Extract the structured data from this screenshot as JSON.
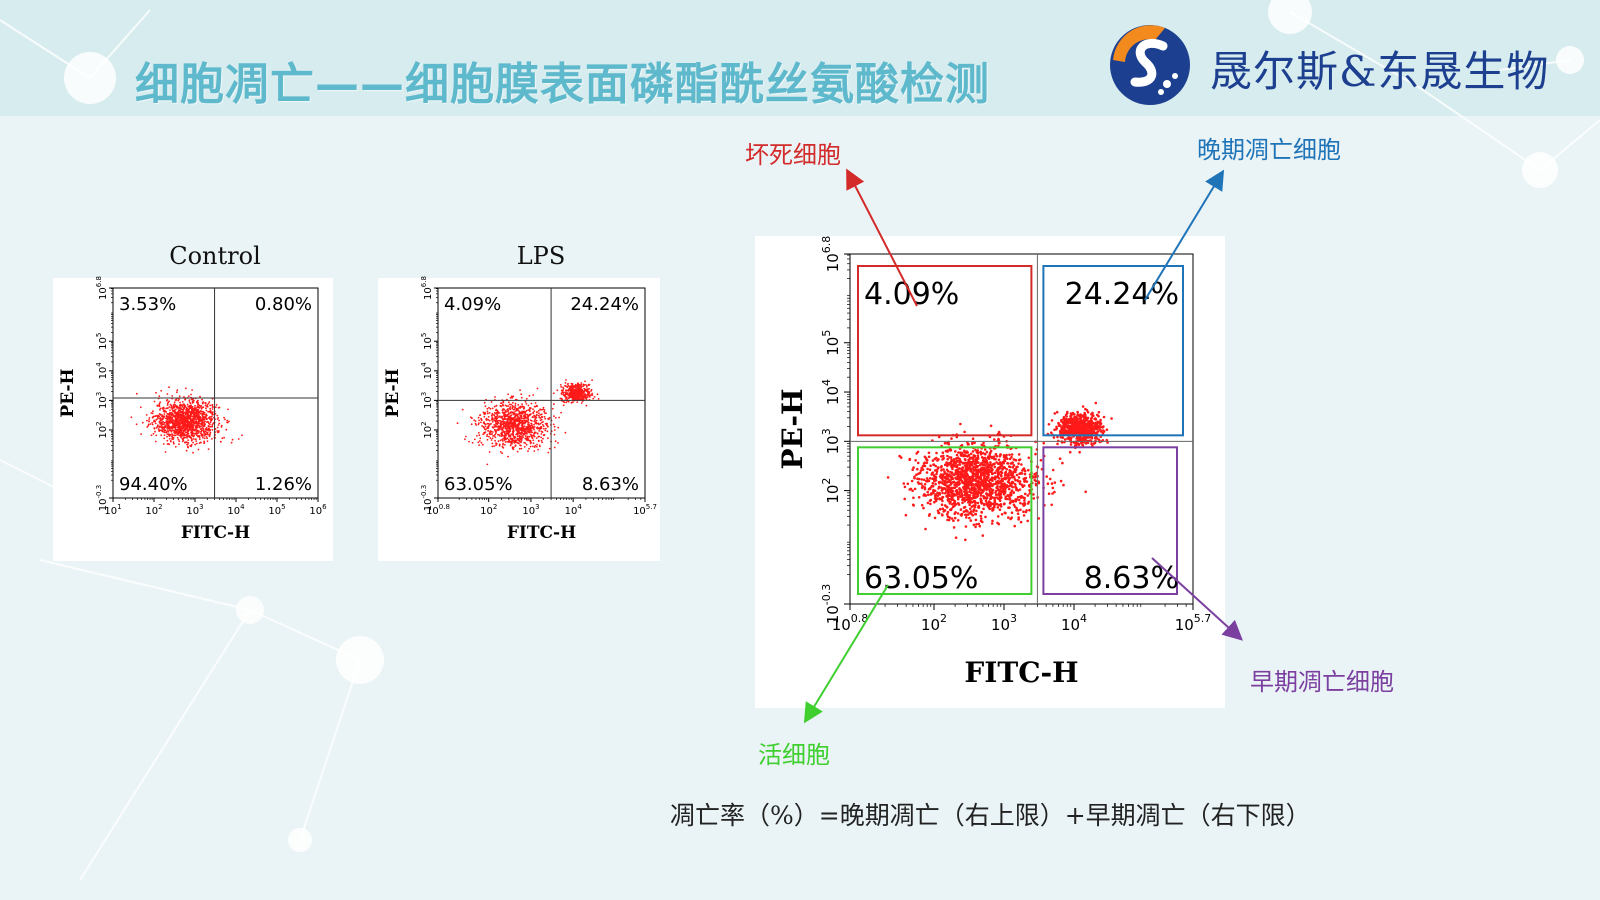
{
  "header": {
    "title": "细胞凋亡——细胞膜表面磷酯酰丝氨酸检测",
    "company": "晟尔斯&东晟生物"
  },
  "annotations": {
    "necrotic": "坏死细胞",
    "late_apoptotic": "晚期凋亡细胞",
    "early_apoptotic": "早期凋亡细胞",
    "live": "活细胞"
  },
  "formula": "凋亡率（%）=晚期凋亡（右上限）+早期凋亡（右下限）",
  "colors": {
    "necrotic": "#d32a2a",
    "late_apoptotic": "#1f74b8",
    "early_apoptotic": "#7b3fa0",
    "live": "#3fcf2f",
    "dots": "#ff1a1a"
  },
  "chart_data": [
    {
      "type": "scatter",
      "title": "Control",
      "xlabel": "FITC-H",
      "ylabel": "PE-H",
      "x_scale": "log",
      "y_scale": "log",
      "xlim": [
        10,
        1000000
      ],
      "ylim_exp": [
        -0.3,
        6.8
      ],
      "x_ticks": [
        {
          "b": "10",
          "e": "1"
        },
        {
          "b": "10",
          "e": "2"
        },
        {
          "b": "10",
          "e": "3"
        },
        {
          "b": "10",
          "e": "4"
        },
        {
          "b": "10",
          "e": "5"
        },
        {
          "b": "10",
          "e": "6"
        }
      ],
      "y_ticks": [
        {
          "b": "10",
          "e": "-0.3"
        },
        {
          "b": "10",
          "e": "2"
        },
        {
          "b": "10",
          "e": "3"
        },
        {
          "b": "10",
          "e": "4"
        },
        {
          "b": "10",
          "e": "5"
        },
        {
          "b": "10",
          "e": "6.8"
        }
      ],
      "quadrants": {
        "upper_left": "3.53%",
        "upper_right": "0.80%",
        "lower_left": "94.40%",
        "lower_right": "1.26%"
      },
      "gate": {
        "x": 3000,
        "y": 1200
      },
      "clusters": [
        {
          "cx": 600,
          "cy": 200,
          "sx": 0.38,
          "sy": 0.35,
          "n": 1400
        }
      ]
    },
    {
      "type": "scatter",
      "title": "LPS",
      "xlabel": "FITC-H",
      "ylabel": "PE-H",
      "x_scale": "log",
      "y_scale": "log",
      "xlim_exp": [
        0.8,
        5.7
      ],
      "ylim_exp": [
        -0.3,
        6.8
      ],
      "x_ticks": [
        {
          "b": "10",
          "e": "0.8"
        },
        {
          "b": "10",
          "e": "2"
        },
        {
          "b": "10",
          "e": "3"
        },
        {
          "b": "10",
          "e": "4"
        },
        {
          "b": "10",
          "e": "5.7"
        }
      ],
      "y_ticks": [
        {
          "b": "10",
          "e": "-0.3"
        },
        {
          "b": "10",
          "e": "2"
        },
        {
          "b": "10",
          "e": "3"
        },
        {
          "b": "10",
          "e": "4"
        },
        {
          "b": "10",
          "e": "5"
        },
        {
          "b": "10",
          "e": "6.8"
        }
      ],
      "quadrants": {
        "upper_left": "4.09%",
        "upper_right": "24.24%",
        "lower_left": "63.05%",
        "lower_right": "8.63%"
      },
      "gate": {
        "x": 3000,
        "y": 1000
      },
      "clusters": [
        {
          "cx": 400,
          "cy": 150,
          "sx": 0.4,
          "sy": 0.38,
          "n": 1100
        },
        {
          "cx": 12000,
          "cy": 1800,
          "sx": 0.16,
          "sy": 0.15,
          "n": 500
        }
      ]
    },
    {
      "type": "scatter",
      "title": "",
      "xlabel": "FITC-H",
      "ylabel": "PE-H",
      "x_scale": "log",
      "y_scale": "log",
      "xlim_exp": [
        0.8,
        5.7
      ],
      "ylim_exp": [
        -0.3,
        6.8
      ],
      "x_ticks": [
        {
          "b": "10",
          "e": "0.8"
        },
        {
          "b": "10",
          "e": "2"
        },
        {
          "b": "10",
          "e": "3"
        },
        {
          "b": "10",
          "e": "4"
        },
        {
          "b": "10",
          "e": "5.7"
        }
      ],
      "y_ticks": [
        {
          "b": "10",
          "e": "-0.3"
        },
        {
          "b": "10",
          "e": "2"
        },
        {
          "b": "10",
          "e": "3"
        },
        {
          "b": "10",
          "e": "4"
        },
        {
          "b": "10",
          "e": "5"
        },
        {
          "b": "10",
          "e": "6.8"
        }
      ],
      "quadrants": {
        "upper_left": "4.09%",
        "upper_right": "24.24%",
        "lower_left": "63.05%",
        "lower_right": "8.63%"
      },
      "gate": {
        "x": 3000,
        "y": 1000
      },
      "clusters": [
        {
          "cx": 400,
          "cy": 150,
          "sx": 0.4,
          "sy": 0.38,
          "n": 1500
        },
        {
          "cx": 12000,
          "cy": 1800,
          "sx": 0.16,
          "sy": 0.15,
          "n": 700
        }
      ]
    }
  ]
}
